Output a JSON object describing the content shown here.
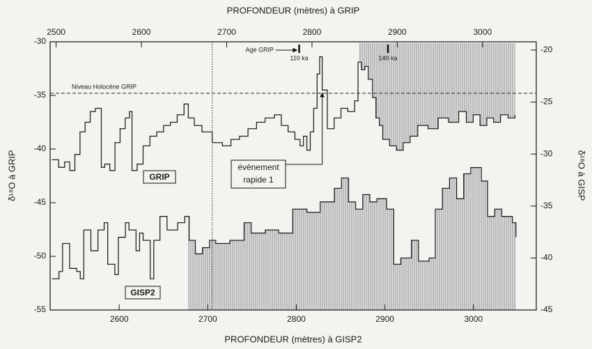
{
  "chart_data": {
    "type": "step",
    "x_label": "PROFONDEUR (mètres) à GISP2",
    "x2_label": "PROFONDEUR (mètres) à GRIP",
    "y_label": "δ¹⁸O à GRIP",
    "y2_label": "δ¹⁸O à GISP",
    "xlim": [
      2522,
      3071
    ],
    "xticks": [
      2600,
      2700,
      2800,
      2900,
      3000
    ],
    "x2lim": [
      2493,
      3063
    ],
    "x2ticks": [
      2500,
      2600,
      2700,
      2800,
      2900,
      3000
    ],
    "ylim": [
      -55,
      -30
    ],
    "yticks": [
      -55,
      -50,
      -45,
      -40,
      -35,
      -30
    ],
    "y2lim": [
      -45,
      -19.2
    ],
    "y2ticks": [
      -45,
      -40,
      -35,
      -30,
      -25,
      -20
    ],
    "series": [
      {
        "name": "GRIP",
        "color": "#222222",
        "xaxis": "x2",
        "shade_from": 2855,
        "shade": "to_top",
        "x": [
          2495,
          2503,
          2510,
          2516,
          2522,
          2528,
          2534,
          2540,
          2546,
          2553,
          2557,
          2563,
          2569,
          2575,
          2581,
          2586,
          2589,
          2595,
          2602,
          2610,
          2618,
          2626,
          2634,
          2642,
          2650,
          2655,
          2662,
          2671,
          2683,
          2695,
          2705,
          2715,
          2725,
          2735,
          2745,
          2756,
          2764,
          2772,
          2780,
          2786,
          2790,
          2794,
          2798,
          2802,
          2806,
          2809,
          2812,
          2818,
          2826,
          2834,
          2842,
          2850,
          2854,
          2858,
          2862,
          2866,
          2871,
          2875,
          2879,
          2883,
          2891,
          2899,
          2907,
          2915,
          2924,
          2936,
          2948,
          2960,
          2972,
          2981,
          2989,
          2997,
          3005,
          3013,
          3021,
          3030,
          3038
        ],
        "values": [
          -41.0,
          -41.7,
          -41.2,
          -42.0,
          -40.5,
          -38.4,
          -37.5,
          -36.5,
          -36.2,
          -41.7,
          -41.4,
          -42.0,
          -39.4,
          -38.1,
          -37.1,
          -36.5,
          -42.0,
          -41.4,
          -39.7,
          -38.8,
          -38.4,
          -37.8,
          -37.5,
          -36.8,
          -35.8,
          -37.1,
          -37.8,
          -38.4,
          -39.4,
          -39.7,
          -39.1,
          -38.8,
          -38.1,
          -37.5,
          -37.1,
          -36.8,
          -37.8,
          -38.4,
          -39.1,
          -39.7,
          -38.8,
          -40.1,
          -38.4,
          -36.2,
          -33.0,
          -31.4,
          -34.5,
          -38.1,
          -37.1,
          -36.2,
          -36.5,
          -35.5,
          -31.9,
          -32.6,
          -32.3,
          -33.5,
          -35.2,
          -37.1,
          -37.8,
          -39.1,
          -39.7,
          -40.1,
          -39.4,
          -38.8,
          -37.8,
          -38.1,
          -37.1,
          -37.5,
          -36.5,
          -37.5,
          -36.8,
          -37.8,
          -37.1,
          -37.5,
          -36.8,
          -37.1,
          -36.8
        ]
      },
      {
        "name": "GISP2",
        "color": "#222222",
        "axis": "y2",
        "shade_from": 2678,
        "shade": "to_bottom",
        "x": [
          2524,
          2532,
          2536,
          2544,
          2552,
          2556,
          2560,
          2568,
          2576,
          2583,
          2587,
          2595,
          2599,
          2607,
          2611,
          2619,
          2623,
          2627,
          2635,
          2639,
          2646,
          2654,
          2666,
          2674,
          2679,
          2686,
          2694,
          2702,
          2709,
          2725,
          2741,
          2749,
          2765,
          2780,
          2796,
          2812,
          2827,
          2843,
          2851,
          2859,
          2867,
          2875,
          2883,
          2891,
          2902,
          2910,
          2918,
          2930,
          2938,
          2950,
          2957,
          2965,
          2973,
          2981,
          2989,
          2997,
          3009,
          3016,
          3024,
          3032,
          3044,
          3048
        ],
        "values": [
          -42.0,
          -41.3,
          -38.6,
          -41.0,
          -41.3,
          -42.0,
          -37.3,
          -39.3,
          -37.3,
          -36.6,
          -40.6,
          -41.6,
          -38.0,
          -36.6,
          -37.3,
          -39.3,
          -37.6,
          -38.3,
          -42.0,
          -38.3,
          -36.0,
          -37.3,
          -36.6,
          -36.0,
          -38.3,
          -39.6,
          -39.0,
          -38.3,
          -38.6,
          -38.3,
          -36.6,
          -37.6,
          -37.3,
          -37.6,
          -35.3,
          -35.6,
          -34.6,
          -33.3,
          -32.3,
          -34.6,
          -35.3,
          -33.9,
          -34.6,
          -34.3,
          -35.3,
          -40.6,
          -40.0,
          -38.3,
          -40.3,
          -40.0,
          -35.3,
          -33.3,
          -32.3,
          -34.3,
          -31.9,
          -31.3,
          -32.6,
          -36.0,
          -35.3,
          -36.0,
          -36.6,
          -38.0
        ]
      }
    ],
    "holocene": {
      "text": "Niveau Holocène GRIP",
      "y": -34.8
    },
    "divider": {
      "x2": 2683
    },
    "age": {
      "text": "Age GRIP",
      "marks": [
        {
          "x2": 2785,
          "label": "110 ka"
        },
        {
          "x2": 2889,
          "label": "140 ka"
        }
      ]
    },
    "event": {
      "lines": [
        "évènement",
        "rapide  1"
      ],
      "x2": 2812,
      "y": -34.5
    }
  }
}
